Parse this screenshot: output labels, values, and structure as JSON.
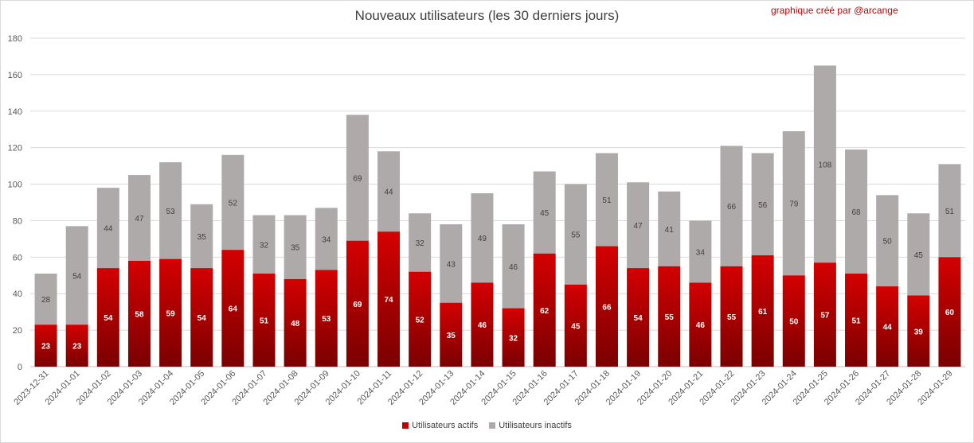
{
  "credit": "graphique créé par @arcange",
  "chart_data": {
    "type": "bar",
    "stacked": true,
    "title": "Nouveaux utilisateurs (les 30 derniers jours)",
    "xlabel": "",
    "ylabel": "",
    "ylim": [
      0,
      180
    ],
    "yticks": [
      0,
      20,
      40,
      60,
      80,
      100,
      120,
      140,
      160,
      180
    ],
    "grid": true,
    "legend_position": "bottom",
    "categories": [
      "2023-12-31",
      "2024-01-01",
      "2024-01-02",
      "2024-01-03",
      "2024-01-04",
      "2024-01-05",
      "2024-01-06",
      "2024-01-07",
      "2024-01-08",
      "2024-01-09",
      "2024-01-10",
      "2024-01-11",
      "2024-01-12",
      "2024-01-13",
      "2024-01-14",
      "2024-01-15",
      "2024-01-16",
      "2024-01-17",
      "2024-01-18",
      "2024-01-19",
      "2024-01-20",
      "2024-01-21",
      "2024-01-22",
      "2024-01-23",
      "2024-01-24",
      "2024-01-25",
      "2024-01-26",
      "2024-01-27",
      "2024-01-28",
      "2024-01-29"
    ],
    "series": [
      {
        "name": "Utilisateurs actifs",
        "color": "#c00000",
        "values": [
          23,
          23,
          54,
          58,
          59,
          54,
          64,
          51,
          48,
          53,
          69,
          74,
          52,
          35,
          46,
          32,
          62,
          45,
          66,
          54,
          55,
          46,
          55,
          61,
          50,
          57,
          51,
          44,
          39,
          60
        ]
      },
      {
        "name": "Utilisateurs inactifs",
        "color": "#aeaaaa",
        "values": [
          28,
          54,
          44,
          47,
          53,
          35,
          52,
          32,
          35,
          34,
          69,
          44,
          32,
          43,
          49,
          46,
          45,
          55,
          51,
          47,
          41,
          34,
          66,
          56,
          79,
          108,
          68,
          50,
          45,
          51
        ]
      }
    ]
  }
}
